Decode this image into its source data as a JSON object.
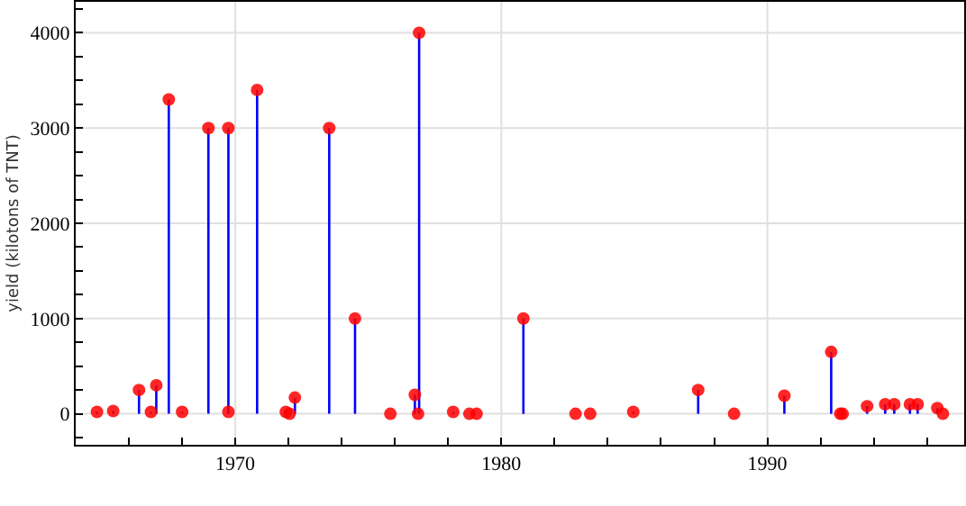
{
  "chart_data": {
    "type": "lollipop",
    "ylabel": "yield (kilotons of TNT)",
    "x": [
      1964.8,
      1965.41,
      1966.38,
      1966.83,
      1967.03,
      1967.5,
      1968.0,
      1968.99,
      1969.74,
      1969.74,
      1970.82,
      1971.9,
      1972.04,
      1972.24,
      1973.53,
      1974.5,
      1975.83,
      1976.75,
      1976.87,
      1976.91,
      1978.19,
      1978.8,
      1979.07,
      1980.83,
      1982.79,
      1983.34,
      1984.96,
      1987.4,
      1988.75,
      1990.64,
      1992.4,
      1992.74,
      1992.83,
      1993.75,
      1994.43,
      1994.77,
      1995.36,
      1995.65,
      1996.39,
      1996.6
    ],
    "values": [
      20,
      30,
      250,
      20,
      300,
      3300,
      20,
      3000,
      3000,
      20,
      3400,
      20,
      0,
      170,
      3000,
      1000,
      0,
      200,
      0,
      4000,
      20,
      0,
      0,
      1000,
      0,
      0,
      20,
      250,
      0,
      190,
      650,
      0,
      0,
      80,
      100,
      100,
      100,
      100,
      60,
      0
    ],
    "color": "#ff0000",
    "marker": "circle",
    "xlim": [
      1964.0,
      1997.4
    ],
    "xticks": [
      {
        "value": 1966,
        "label": null
      },
      {
        "value": 1968,
        "label": null
      },
      1970,
      {
        "value": 1972,
        "label": null
      },
      {
        "value": 1974,
        "label": null
      },
      {
        "value": 1976,
        "label": null
      },
      {
        "value": 1978,
        "label": null
      },
      1980,
      {
        "value": 1982,
        "label": null
      },
      {
        "value": 1984,
        "label": null
      },
      {
        "value": 1986,
        "label": null
      },
      {
        "value": 1988,
        "label": null
      },
      1990,
      {
        "value": 1992,
        "label": null
      },
      {
        "value": 1994,
        "label": null
      },
      {
        "value": 1996,
        "label": null
      }
    ],
    "ylim": [
      -325,
      4325
    ],
    "yticks": [
      {
        "value": -250,
        "label": null
      },
      0,
      {
        "value": 250,
        "label": null
      },
      {
        "value": 500,
        "label": null
      },
      {
        "value": 750,
        "label": null
      },
      1000,
      {
        "value": 1250,
        "label": null
      },
      {
        "value": 1500,
        "label": null
      },
      {
        "value": 1750,
        "label": null
      },
      2000,
      {
        "value": 2250,
        "label": null
      },
      {
        "value": 2500,
        "label": null
      },
      {
        "value": 2750,
        "label": null
      },
      3000,
      {
        "value": 3250,
        "label": null
      },
      {
        "value": 3500,
        "label": null
      },
      {
        "value": 3750,
        "label": null
      },
      4000,
      {
        "value": 4250,
        "label": null
      }
    ],
    "grid": true
  }
}
